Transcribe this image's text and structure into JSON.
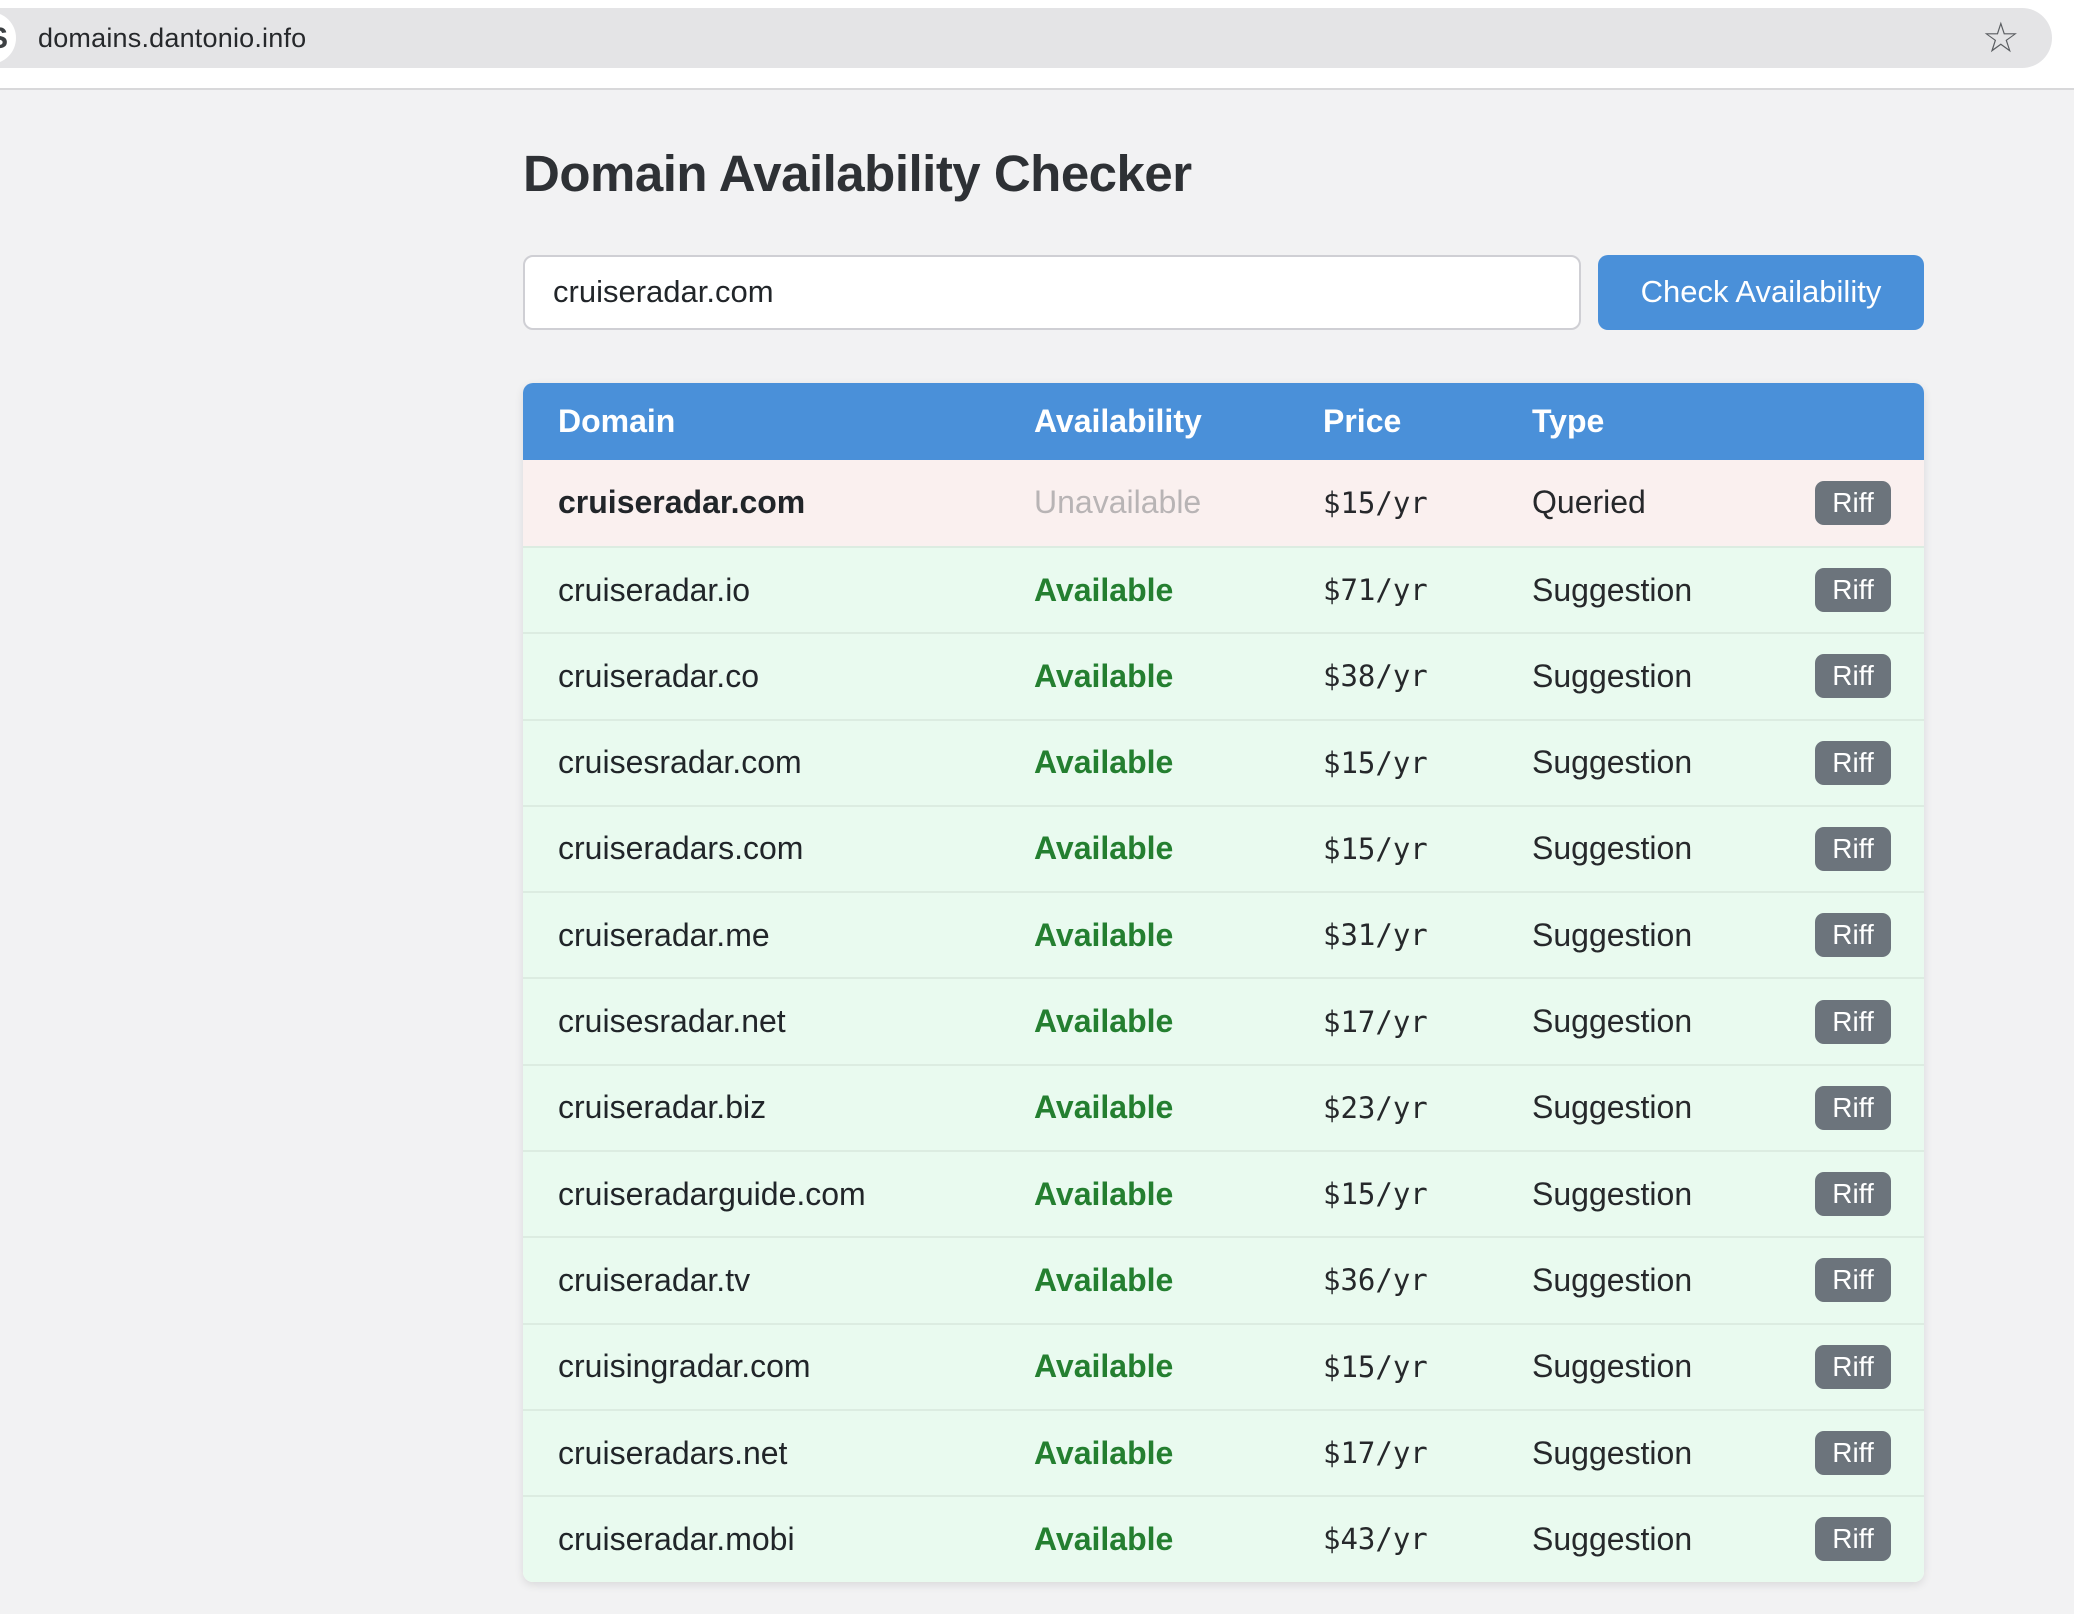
{
  "browser": {
    "url": "domains.dantonio.info",
    "star_icon": "☆",
    "favicon_letter": "S"
  },
  "page": {
    "title": "Domain Availability Checker",
    "search": {
      "value": "cruiseradar.com",
      "button_label": "Check Availability"
    },
    "table": {
      "headers": [
        "Domain",
        "Availability",
        "Price",
        "Type"
      ],
      "riff_label": "Riff",
      "rows": [
        {
          "domain": "cruiseradar.com",
          "availability": "Unavailable",
          "price": "$15/yr",
          "type": "Queried",
          "status": "unavailable"
        },
        {
          "domain": "cruiseradar.io",
          "availability": "Available",
          "price": "$71/yr",
          "type": "Suggestion",
          "status": "available"
        },
        {
          "domain": "cruiseradar.co",
          "availability": "Available",
          "price": "$38/yr",
          "type": "Suggestion",
          "status": "available"
        },
        {
          "domain": "cruisesradar.com",
          "availability": "Available",
          "price": "$15/yr",
          "type": "Suggestion",
          "status": "available"
        },
        {
          "domain": "cruiseradars.com",
          "availability": "Available",
          "price": "$15/yr",
          "type": "Suggestion",
          "status": "available"
        },
        {
          "domain": "cruiseradar.me",
          "availability": "Available",
          "price": "$31/yr",
          "type": "Suggestion",
          "status": "available"
        },
        {
          "domain": "cruisesradar.net",
          "availability": "Available",
          "price": "$17/yr",
          "type": "Suggestion",
          "status": "available"
        },
        {
          "domain": "cruiseradar.biz",
          "availability": "Available",
          "price": "$23/yr",
          "type": "Suggestion",
          "status": "available"
        },
        {
          "domain": "cruiseradarguide.com",
          "availability": "Available",
          "price": "$15/yr",
          "type": "Suggestion",
          "status": "available"
        },
        {
          "domain": "cruiseradar.tv",
          "availability": "Available",
          "price": "$36/yr",
          "type": "Suggestion",
          "status": "available"
        },
        {
          "domain": "cruisingradar.com",
          "availability": "Available",
          "price": "$15/yr",
          "type": "Suggestion",
          "status": "available"
        },
        {
          "domain": "cruiseradars.net",
          "availability": "Available",
          "price": "$17/yr",
          "type": "Suggestion",
          "status": "available"
        },
        {
          "domain": "cruiseradar.mobi",
          "availability": "Available",
          "price": "$43/yr",
          "type": "Suggestion",
          "status": "available"
        }
      ]
    }
  },
  "colors": {
    "accent_blue": "#4a90d9",
    "success_green": "#247f30",
    "unavailable_gray": "#b8b4b5",
    "riff_gray": "#6c747c",
    "row_available_bg": "#e9faef",
    "row_unavailable_bg": "#faf0ef"
  }
}
